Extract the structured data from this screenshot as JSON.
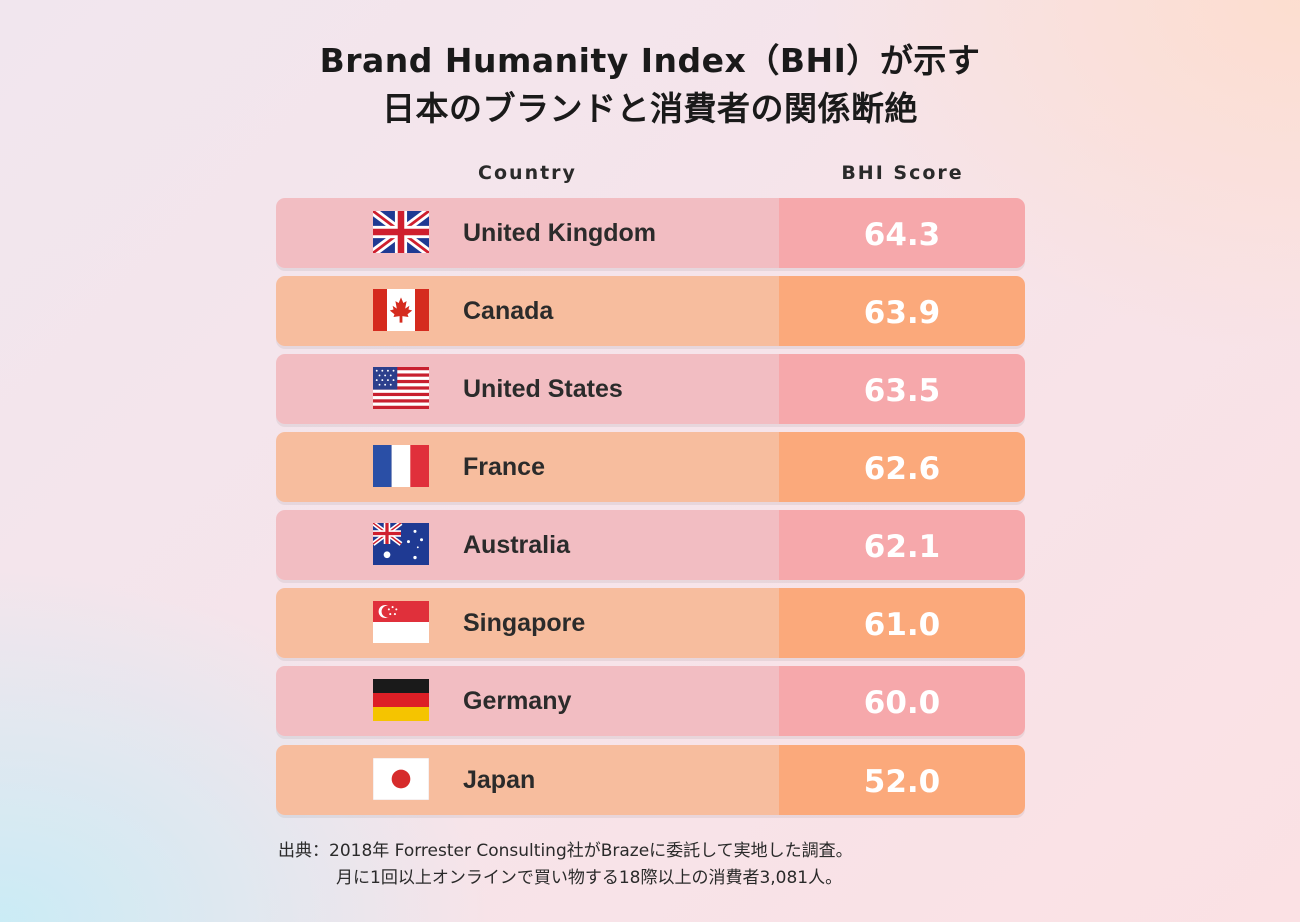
{
  "title": {
    "line1": "Brand Humanity Index（BHI）が示す",
    "line2": "日本のブランドと消費者の関係断絶"
  },
  "headers": {
    "country": "Country",
    "score": "BHI Score"
  },
  "colors": {
    "pink_left": "#f2bdc2",
    "pink_right": "#f6a8ab",
    "orange_left": "#f7bd9e",
    "orange_right": "#fba97b"
  },
  "chart_data": {
    "type": "table",
    "columns": [
      "Country",
      "BHI Score"
    ],
    "rows": [
      {
        "country": "United Kingdom",
        "flag": "uk-flag-icon",
        "score": "64.3"
      },
      {
        "country": "Canada",
        "flag": "canada-flag-icon",
        "score": "63.9"
      },
      {
        "country": "United States",
        "flag": "us-flag-icon",
        "score": "63.5"
      },
      {
        "country": "France",
        "flag": "france-flag-icon",
        "score": "62.6"
      },
      {
        "country": "Australia",
        "flag": "australia-flag-icon",
        "score": "62.1"
      },
      {
        "country": "Singapore",
        "flag": "singapore-flag-icon",
        "score": "61.0"
      },
      {
        "country": "Germany",
        "flag": "germany-flag-icon",
        "score": "60.0"
      },
      {
        "country": "Japan",
        "flag": "japan-flag-icon",
        "score": "52.0"
      }
    ]
  },
  "source": {
    "line1": "出典：2018年 Forrester Consulting社がBrazeに委託して実地した調査。",
    "line2": "月に1回以上オンラインで買い物する18際以上の消費者3,081人。"
  }
}
